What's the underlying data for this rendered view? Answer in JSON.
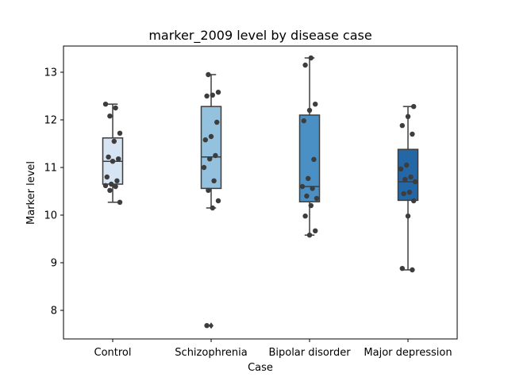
{
  "chart_data": {
    "type": "box",
    "title": "marker_2009 level by disease case",
    "xlabel": "Case",
    "ylabel": "Marker level",
    "ylim": [
      7.4,
      13.55
    ],
    "yticks": [
      8,
      9,
      10,
      11,
      12,
      13
    ],
    "grid": false,
    "categories": [
      "Control",
      "Schizophrenia",
      "Bipolar disorder",
      "Major depression"
    ],
    "box_colors": [
      "#d6e4f3",
      "#94c1de",
      "#4b90c4",
      "#2367a7"
    ],
    "edge_color": "#3d3d3d",
    "point_color": "#3d3d3d",
    "boxes": [
      {
        "category": "Control",
        "whisker_low": 10.27,
        "q1": 10.65,
        "median": 11.13,
        "q3": 11.62,
        "whisker_high": 12.33,
        "outliers": []
      },
      {
        "category": "Schizophrenia",
        "whisker_low": 10.15,
        "q1": 10.56,
        "median": 11.22,
        "q3": 12.28,
        "whisker_high": 12.95,
        "outliers": [
          7.68
        ]
      },
      {
        "category": "Bipolar disorder",
        "whisker_low": 9.58,
        "q1": 10.28,
        "median": 10.6,
        "q3": 12.1,
        "whisker_high": 13.3,
        "outliers": []
      },
      {
        "category": "Major depression",
        "whisker_low": 8.85,
        "q1": 10.31,
        "median": 10.7,
        "q3": 11.38,
        "whisker_high": 12.28,
        "outliers": []
      }
    ],
    "points": [
      {
        "category": "Control",
        "values": [
          12.33,
          12.25,
          12.08,
          11.72,
          11.55,
          11.22,
          11.18,
          11.13,
          10.8,
          10.72,
          10.65,
          10.62,
          10.6,
          10.52,
          10.27
        ]
      },
      {
        "category": "Schizophrenia",
        "values": [
          12.95,
          12.58,
          12.52,
          12.5,
          11.95,
          11.65,
          11.58,
          11.25,
          11.18,
          11.0,
          10.72,
          10.52,
          10.3,
          10.15,
          7.68
        ]
      },
      {
        "category": "Bipolar disorder",
        "values": [
          13.3,
          13.15,
          12.33,
          12.2,
          11.98,
          11.17,
          10.77,
          10.6,
          10.56,
          10.4,
          10.35,
          10.2,
          9.98,
          9.67,
          9.58
        ]
      },
      {
        "category": "Major depression",
        "values": [
          12.28,
          12.07,
          11.88,
          11.7,
          11.05,
          10.97,
          10.8,
          10.75,
          10.7,
          10.48,
          10.45,
          10.3,
          9.98,
          8.88,
          8.85
        ]
      }
    ]
  }
}
